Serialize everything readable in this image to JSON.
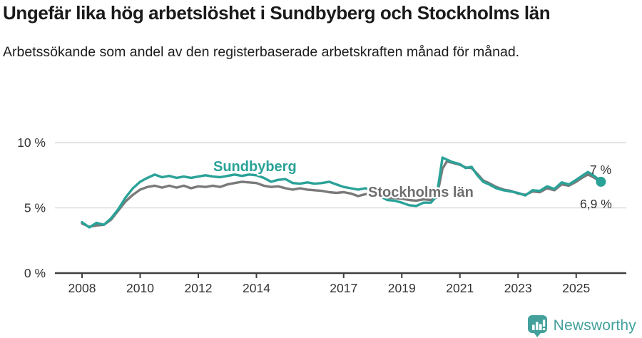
{
  "header": {
    "title": "Ungefär lika hög arbetslöshet i Sundbyberg och Stockholms län",
    "subtitle": "Arbetssökande som andel av den registerbaserade arbetskraften månad för månad."
  },
  "footer": {
    "brand": "Newsworthy",
    "logo_icon": "bar-chart-speech-bubble"
  },
  "colors": {
    "accent_teal": "#2AA298",
    "series_gray": "#7A7A7A",
    "label_gray": "#6E6E6E",
    "logo_teal": "#43A09B",
    "grid": "#DADADA",
    "axis": "#3F3F3F",
    "axis_text": "#333333",
    "annotation_text": "#333333"
  },
  "chart_data": {
    "type": "line",
    "title": "Ungefär lika hög arbetslöshet i Sundbyberg och Stockholms län",
    "subtitle": "Arbetssökande som andel av den registerbaserade arbetskraften månad för månad.",
    "x_unit": "decimal_year",
    "grid": "horizontal",
    "legend_position": "inline-labels",
    "xlim": [
      2007.05,
      2026.7
    ],
    "ylim": [
      0,
      10.9
    ],
    "x_ticks": [
      2008,
      2010,
      2012,
      2014,
      2017,
      2019,
      2021,
      2023,
      2025
    ],
    "y_ticks": [
      {
        "value": 0,
        "label": "0 %"
      },
      {
        "value": 5,
        "label": "5 %"
      },
      {
        "value": 10,
        "label": "10 %"
      }
    ],
    "x": [
      2008.0,
      2008.25,
      2008.5,
      2008.75,
      2009.0,
      2009.25,
      2009.5,
      2009.75,
      2010.0,
      2010.25,
      2010.5,
      2010.75,
      2011.0,
      2011.25,
      2011.5,
      2011.75,
      2012.0,
      2012.25,
      2012.5,
      2012.75,
      2013.0,
      2013.25,
      2013.5,
      2013.75,
      2014.0,
      2014.25,
      2014.5,
      2014.75,
      2015.0,
      2015.25,
      2015.5,
      2015.75,
      2016.0,
      2016.25,
      2016.5,
      2016.75,
      2017.0,
      2017.25,
      2017.5,
      2017.75,
      2018.0,
      2018.25,
      2018.5,
      2018.75,
      2019.0,
      2019.25,
      2019.5,
      2019.75,
      2020.0,
      2020.2,
      2020.4,
      2020.55,
      2020.75,
      2021.0,
      2021.2,
      2021.4,
      2021.6,
      2021.8,
      2022.0,
      2022.25,
      2022.5,
      2022.75,
      2023.0,
      2023.25,
      2023.5,
      2023.75,
      2024.0,
      2024.25,
      2024.5,
      2024.75,
      2025.0,
      2025.2,
      2025.4,
      2025.55,
      2025.7,
      2025.85
    ],
    "series": [
      {
        "name": "Sundbyberg",
        "inline_label": "Sundbyberg",
        "end_label": "7 %",
        "end_value": 7.0,
        "color": "#2AA298",
        "values": [
          3.9,
          3.5,
          3.85,
          3.7,
          4.2,
          4.9,
          5.8,
          6.5,
          7.0,
          7.3,
          7.55,
          7.35,
          7.45,
          7.3,
          7.4,
          7.3,
          7.4,
          7.5,
          7.4,
          7.35,
          7.45,
          7.55,
          7.45,
          7.55,
          7.5,
          7.3,
          7.0,
          7.15,
          7.2,
          6.9,
          6.85,
          6.95,
          6.85,
          6.9,
          7.0,
          6.8,
          6.6,
          6.5,
          6.4,
          6.5,
          6.3,
          5.9,
          5.6,
          5.55,
          5.4,
          5.2,
          5.15,
          5.4,
          5.4,
          5.9,
          8.85,
          8.7,
          8.5,
          8.35,
          8.05,
          8.15,
          7.5,
          7.0,
          6.8,
          6.5,
          6.35,
          6.25,
          6.15,
          5.95,
          6.35,
          6.3,
          6.65,
          6.45,
          6.95,
          6.8,
          7.15,
          7.45,
          7.75,
          7.55,
          7.3,
          7.0
        ]
      },
      {
        "name": "Stockholms län",
        "inline_label": "Stockholms län",
        "end_label": "6,9 %",
        "end_value": 6.9,
        "color": "#7A7A7A",
        "values": [
          3.8,
          3.55,
          3.65,
          3.7,
          4.1,
          4.8,
          5.5,
          6.0,
          6.4,
          6.6,
          6.7,
          6.55,
          6.7,
          6.55,
          6.7,
          6.5,
          6.65,
          6.6,
          6.7,
          6.6,
          6.8,
          6.9,
          7.0,
          6.95,
          6.9,
          6.7,
          6.6,
          6.65,
          6.5,
          6.4,
          6.5,
          6.4,
          6.35,
          6.3,
          6.2,
          6.15,
          6.2,
          6.1,
          5.9,
          6.05,
          6.1,
          5.95,
          5.8,
          5.75,
          5.7,
          5.6,
          5.55,
          5.65,
          5.6,
          5.8,
          8.0,
          8.55,
          8.45,
          8.3,
          8.1,
          8.05,
          7.6,
          7.1,
          6.9,
          6.6,
          6.4,
          6.3,
          6.1,
          6.0,
          6.25,
          6.2,
          6.5,
          6.35,
          6.8,
          6.7,
          7.0,
          7.3,
          7.55,
          7.4,
          7.2,
          6.9
        ]
      }
    ]
  }
}
